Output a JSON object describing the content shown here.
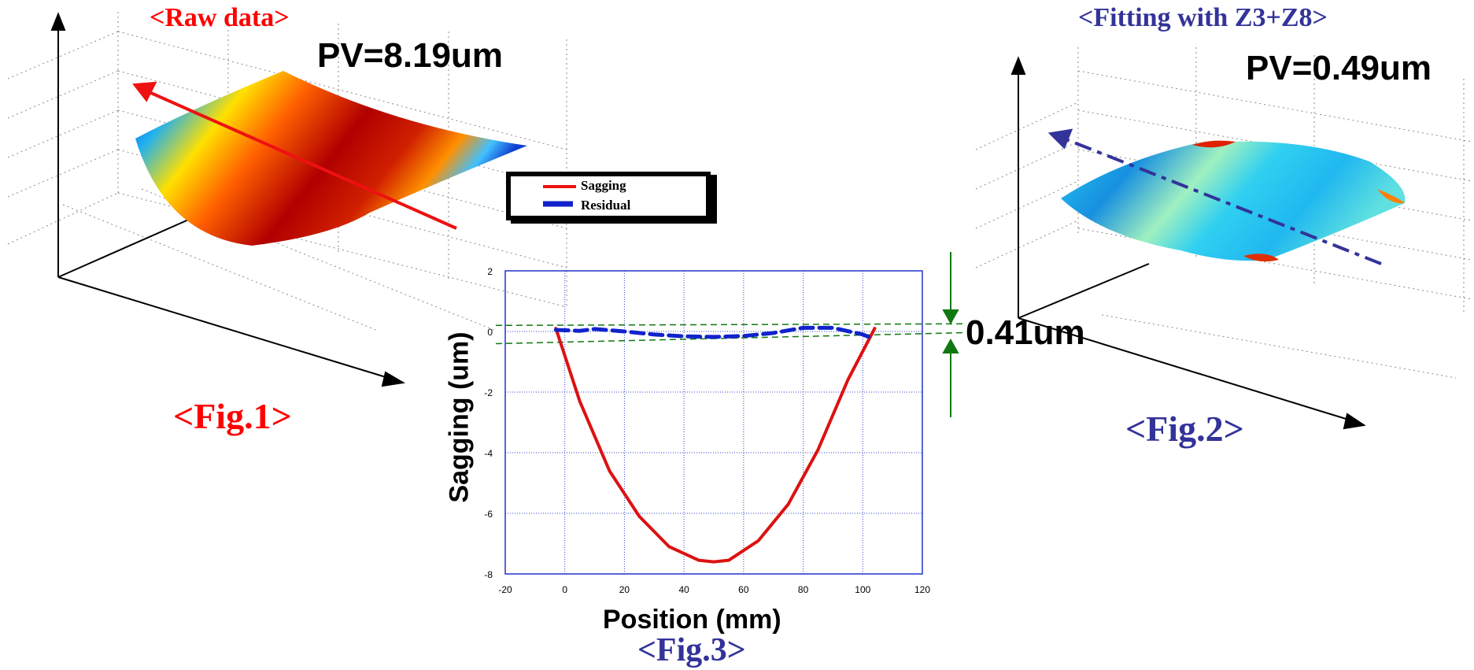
{
  "fig1": {
    "title": "<Raw data>",
    "pv": "PV=8.19um",
    "caption": "<Fig.1>",
    "title_color": "#ff0000",
    "caption_color": "#ff0000"
  },
  "fig2": {
    "title": "<Fitting with Z3+Z8>",
    "pv": "PV=0.49um",
    "caption": "<Fig.2>",
    "title_color": "#333399",
    "caption_color": "#333399"
  },
  "fig3": {
    "caption": "<Fig.3>",
    "caption_color": "#333399",
    "band_label": "0.41um"
  },
  "chart_data": {
    "type": "line",
    "xlabel": "Position (mm)",
    "ylabel": "Sagging (um)",
    "xlim": [
      -20,
      120
    ],
    "ylim": [
      -8,
      2
    ],
    "xticks": [
      -20,
      0,
      20,
      40,
      60,
      80,
      100,
      120
    ],
    "yticks": [
      2,
      0,
      -2,
      -4,
      -6,
      -8
    ],
    "grid": true,
    "legend_position": "top-left (above plot)",
    "series": [
      {
        "name": "Sagging",
        "color": "#dd1111",
        "style": "solid",
        "x": [
          -3,
          5,
          15,
          25,
          35,
          45,
          50,
          55,
          65,
          75,
          85,
          95,
          104
        ],
        "y": [
          0.1,
          -2.3,
          -4.6,
          -6.1,
          -7.1,
          -7.55,
          -7.6,
          -7.55,
          -6.9,
          -5.7,
          -3.9,
          -1.6,
          0.1
        ]
      },
      {
        "name": "Residual",
        "color": "#1122cc",
        "style": "dashed",
        "x": [
          -3,
          5,
          10,
          20,
          30,
          40,
          50,
          60,
          70,
          80,
          90,
          100,
          103
        ],
        "y": [
          0.05,
          0.02,
          0.08,
          0.0,
          -0.1,
          -0.16,
          -0.18,
          -0.15,
          -0.05,
          0.12,
          0.12,
          -0.1,
          -0.22
        ]
      }
    ],
    "annotations": {
      "band_top": 0.2,
      "band_bottom": -0.3,
      "band_color": "#117711"
    }
  }
}
